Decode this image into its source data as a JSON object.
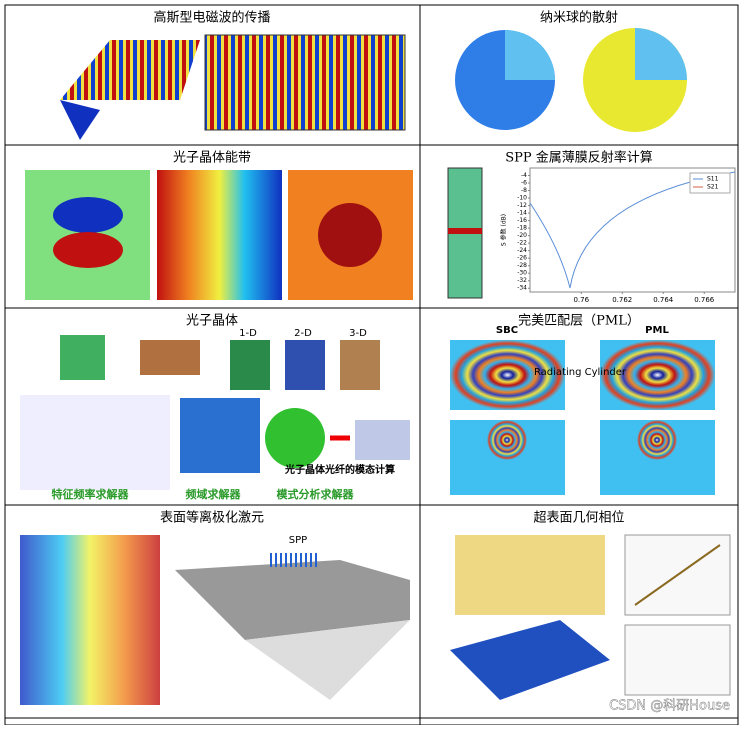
{
  "cells": [
    {
      "title": "高斯型电磁波的传播"
    },
    {
      "title": "纳米球的散射"
    },
    {
      "title": "光子晶体能带"
    },
    {
      "title": "SPP 金属薄膜反射率计算",
      "chart": {
        "ylabel": "S 参数 (dB)",
        "legend": [
          "S11",
          "S21"
        ],
        "xlim": [
          0.7575,
          0.7675
        ],
        "ylim": [
          -35,
          -2
        ],
        "xticks": [
          0.76,
          0.762,
          0.764,
          0.766
        ],
        "yticks": [
          -4,
          -6,
          -8,
          -10,
          -12,
          -14,
          -16,
          -18,
          -20,
          -22,
          -24,
          -26,
          -28,
          -30,
          -32,
          -34
        ]
      }
    },
    {
      "title": "光子晶体",
      "dims": [
        "1-D",
        "2-D",
        "3-D"
      ],
      "labels": [
        "特征频率求解器",
        "频域求解器",
        "模式分析求解器"
      ],
      "annotation": "光子晶体光纤的模态计算"
    },
    {
      "title": "完美匹配层（PML）",
      "labels": [
        "SBC",
        "PML"
      ],
      "annotation": "Radiating Cylinder"
    },
    {
      "title": "表面等离极化激元",
      "labels": [
        "SPP"
      ]
    },
    {
      "title": "超表面几何相位"
    }
  ],
  "watermark": "CSDN @科研House"
}
